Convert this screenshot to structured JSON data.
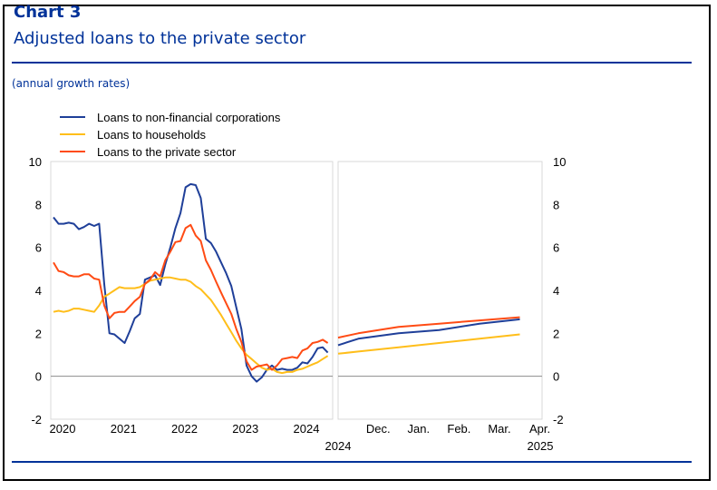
{
  "header": {
    "chart_number": "Chart 3",
    "title": "Adjusted loans to the private sector",
    "subtitle": "(annual growth rates)"
  },
  "colors": {
    "corporations": "#1f3f99",
    "households": "#ffbe1a",
    "private_sector": "#ff4b14",
    "brand": "#003299"
  },
  "chart_data": [
    {
      "type": "line",
      "panel": "history",
      "ylim": [
        -2,
        10
      ],
      "yticks": [
        -2,
        0,
        2,
        4,
        6,
        8,
        10
      ],
      "x_tick_labels": [
        "2020",
        "2021",
        "2022",
        "2023",
        "2024"
      ],
      "x_range": [
        2020.0,
        2024.58
      ],
      "legend": [
        "Loans to non-financial corporations",
        "Loans to households",
        "Loans to the private sector"
      ],
      "legend_position": "top-left",
      "series": [
        {
          "name": "Loans to non-financial corporations",
          "x": [
            2020.0,
            2020.083,
            2020.167,
            2020.25,
            2020.333,
            2020.417,
            2020.5,
            2020.583,
            2020.667,
            2020.75,
            2020.833,
            2020.917,
            2021.0,
            2021.083,
            2021.167,
            2021.25,
            2021.333,
            2021.417,
            2021.5,
            2021.583,
            2021.667,
            2021.75,
            2021.833,
            2021.917,
            2022.0,
            2022.083,
            2022.167,
            2022.25,
            2022.333,
            2022.417,
            2022.5,
            2022.583,
            2022.667,
            2022.75,
            2022.833,
            2022.917,
            2023.0,
            2023.083,
            2023.167,
            2023.25,
            2023.333,
            2023.417,
            2023.5,
            2023.583,
            2023.667,
            2023.75,
            2023.833,
            2023.917,
            2024.0,
            2024.083,
            2024.167,
            2024.25,
            2024.333,
            2024.417,
            2024.5
          ],
          "y": [
            7.4,
            7.1,
            7.1,
            7.15,
            7.1,
            6.85,
            6.95,
            7.1,
            7.0,
            7.1,
            4.3,
            2.0,
            1.95,
            1.75,
            1.55,
            2.1,
            2.7,
            2.9,
            4.5,
            4.6,
            4.7,
            4.25,
            5.2,
            6.0,
            6.9,
            7.6,
            8.8,
            8.95,
            8.9,
            8.3,
            6.4,
            6.2,
            5.8,
            5.3,
            4.8,
            4.2,
            3.2,
            2.2,
            0.5,
            0.0,
            -0.25,
            -0.05,
            0.3,
            0.5,
            0.3,
            0.35,
            0.3,
            0.3,
            0.4,
            0.65,
            0.6,
            0.9,
            1.3,
            1.35,
            1.1
          ]
        },
        {
          "name": "Loans to households",
          "x": [
            2020.0,
            2020.083,
            2020.167,
            2020.25,
            2020.333,
            2020.417,
            2020.5,
            2020.583,
            2020.667,
            2020.75,
            2020.833,
            2020.917,
            2021.0,
            2021.083,
            2021.167,
            2021.25,
            2021.333,
            2021.417,
            2021.5,
            2021.583,
            2021.667,
            2021.75,
            2021.833,
            2021.917,
            2022.0,
            2022.083,
            2022.167,
            2022.25,
            2022.333,
            2022.417,
            2022.5,
            2022.583,
            2022.667,
            2022.75,
            2022.833,
            2022.917,
            2023.0,
            2023.083,
            2023.167,
            2023.25,
            2023.333,
            2023.417,
            2023.5,
            2023.583,
            2023.667,
            2023.75,
            2023.833,
            2023.917,
            2024.0,
            2024.083,
            2024.167,
            2024.25,
            2024.333,
            2024.417,
            2024.5
          ],
          "y": [
            3.0,
            3.05,
            3.0,
            3.05,
            3.15,
            3.15,
            3.1,
            3.05,
            3.0,
            3.3,
            3.7,
            3.85,
            4.0,
            4.15,
            4.1,
            4.1,
            4.1,
            4.15,
            4.3,
            4.45,
            4.5,
            4.55,
            4.6,
            4.6,
            4.55,
            4.5,
            4.5,
            4.4,
            4.2,
            4.05,
            3.8,
            3.55,
            3.2,
            2.85,
            2.45,
            2.05,
            1.65,
            1.3,
            1.0,
            0.8,
            0.6,
            0.4,
            0.3,
            0.35,
            0.2,
            0.15,
            0.2,
            0.2,
            0.3,
            0.35,
            0.45,
            0.55,
            0.65,
            0.8,
            0.95
          ]
        },
        {
          "name": "Loans to the private sector",
          "x": [
            2020.0,
            2020.083,
            2020.167,
            2020.25,
            2020.333,
            2020.417,
            2020.5,
            2020.583,
            2020.667,
            2020.75,
            2020.833,
            2020.917,
            2021.0,
            2021.083,
            2021.167,
            2021.25,
            2021.333,
            2021.417,
            2021.5,
            2021.583,
            2021.667,
            2021.75,
            2021.833,
            2021.917,
            2022.0,
            2022.083,
            2022.167,
            2022.25,
            2022.333,
            2022.417,
            2022.5,
            2022.583,
            2022.667,
            2022.75,
            2022.833,
            2022.917,
            2023.0,
            2023.083,
            2023.167,
            2023.25,
            2023.333,
            2023.417,
            2023.5,
            2023.583,
            2023.667,
            2023.75,
            2023.833,
            2023.917,
            2024.0,
            2024.083,
            2024.167,
            2024.25,
            2024.333,
            2024.417,
            2024.5
          ],
          "y": [
            5.3,
            4.9,
            4.85,
            4.7,
            4.65,
            4.65,
            4.75,
            4.75,
            4.55,
            4.5,
            3.3,
            2.7,
            2.95,
            3.0,
            3.0,
            3.25,
            3.5,
            3.7,
            4.3,
            4.5,
            4.85,
            4.65,
            5.4,
            5.8,
            6.25,
            6.3,
            6.9,
            7.05,
            6.55,
            6.3,
            5.4,
            4.95,
            4.4,
            3.9,
            3.4,
            2.9,
            2.2,
            1.6,
            0.7,
            0.3,
            0.45,
            0.5,
            0.55,
            0.3,
            0.5,
            0.8,
            0.85,
            0.9,
            0.85,
            1.2,
            1.3,
            1.55,
            1.6,
            1.7,
            1.55
          ]
        }
      ]
    },
    {
      "type": "line",
      "panel": "projection",
      "ylim": [
        -2,
        10
      ],
      "yticks": [
        -2,
        0,
        2,
        4,
        6,
        8,
        10
      ],
      "categories": [
        "Dec.",
        "Jan.",
        "Feb.",
        "Mar.",
        "Apr."
      ],
      "year_labels": [
        "2024",
        "2025"
      ],
      "x_range": [
        -0.5,
        4.1
      ],
      "series": [
        {
          "name": "Loans to non-financial corporations",
          "x": [
            -0.5,
            0.0,
            1.0,
            2.0,
            3.0,
            4.0
          ],
          "y": [
            1.45,
            1.75,
            2.0,
            2.15,
            2.45,
            2.65
          ]
        },
        {
          "name": "Loans to households",
          "x": [
            -0.5,
            0.0,
            1.0,
            2.0,
            3.0,
            4.0
          ],
          "y": [
            1.05,
            1.15,
            1.35,
            1.55,
            1.75,
            1.95
          ]
        },
        {
          "name": "Loans to the private sector",
          "x": [
            -0.5,
            0.0,
            1.0,
            2.0,
            3.0,
            4.0
          ],
          "y": [
            1.8,
            2.0,
            2.3,
            2.45,
            2.6,
            2.75
          ]
        }
      ]
    }
  ]
}
